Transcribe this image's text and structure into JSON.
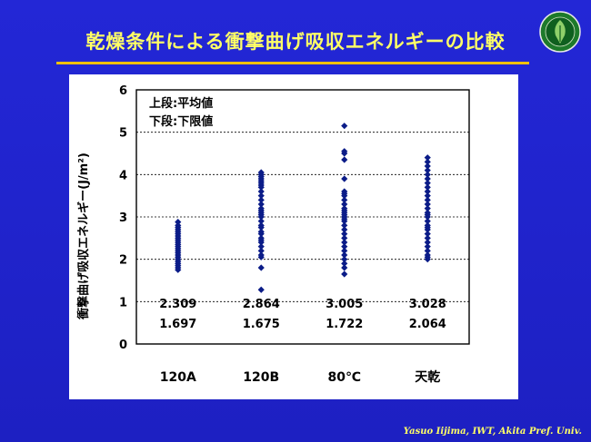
{
  "slide": {
    "title": "乾燥条件による衝撃曲げ吸収エネルギーの比較",
    "footer": "Yasuo Iijima, IWT, Akita Pref.  Univ.",
    "logo_icon": "university-seal-icon",
    "colors": {
      "background": "#1f22c8",
      "title": "#ffff66",
      "rule": "#f0c000",
      "points": "#0b1c88"
    }
  },
  "chart_data": {
    "type": "scatter",
    "title": "",
    "xlabel": "",
    "ylabel": "衝撃曲げ吸収エネルギー(J/m²)",
    "ylim": [
      0,
      6
    ],
    "yticks": [
      0,
      1,
      2,
      3,
      4,
      5,
      6
    ],
    "grid": "horizontal dashed",
    "categories": [
      "120A",
      "120B",
      "80℃",
      "天乾"
    ],
    "legend_lines": [
      "上段:平均値",
      "下段:下限値"
    ],
    "legend_position": "top-left",
    "means": [
      "2.309",
      "2.864",
      "3.005",
      "3.028"
    ],
    "lower_limits": [
      "1.697",
      "1.675",
      "1.722",
      "2.064"
    ],
    "series": [
      {
        "category": "120A",
        "values": [
          1.75,
          1.8,
          1.85,
          1.9,
          1.95,
          2.0,
          2.05,
          2.1,
          2.15,
          2.2,
          2.25,
          2.3,
          2.35,
          2.4,
          2.45,
          2.5,
          2.55,
          2.6,
          2.65,
          2.7,
          2.75,
          2.8,
          2.88
        ]
      },
      {
        "category": "120B",
        "values": [
          1.28,
          1.8,
          2.05,
          2.1,
          2.2,
          2.3,
          2.4,
          2.45,
          2.5,
          2.6,
          2.65,
          2.75,
          2.8,
          2.9,
          3.0,
          3.05,
          3.1,
          3.15,
          3.2,
          3.3,
          3.4,
          3.5,
          3.6,
          3.7,
          3.75,
          3.8,
          3.85,
          3.9,
          3.95,
          4.0,
          4.05
        ]
      },
      {
        "category": "80℃",
        "values": [
          1.65,
          1.8,
          1.9,
          2.0,
          2.1,
          2.2,
          2.3,
          2.4,
          2.5,
          2.6,
          2.7,
          2.8,
          2.9,
          2.95,
          3.0,
          3.05,
          3.1,
          3.15,
          3.2,
          3.3,
          3.4,
          3.5,
          3.55,
          3.6,
          3.9,
          4.35,
          4.5,
          4.55,
          5.15
        ]
      },
      {
        "category": "天乾",
        "values": [
          2.0,
          2.05,
          2.1,
          2.2,
          2.3,
          2.4,
          2.5,
          2.6,
          2.7,
          2.75,
          2.8,
          2.9,
          3.0,
          3.05,
          3.1,
          3.2,
          3.3,
          3.4,
          3.5,
          3.6,
          3.7,
          3.8,
          3.9,
          4.0,
          4.1,
          4.2,
          4.3,
          4.4
        ]
      }
    ]
  }
}
